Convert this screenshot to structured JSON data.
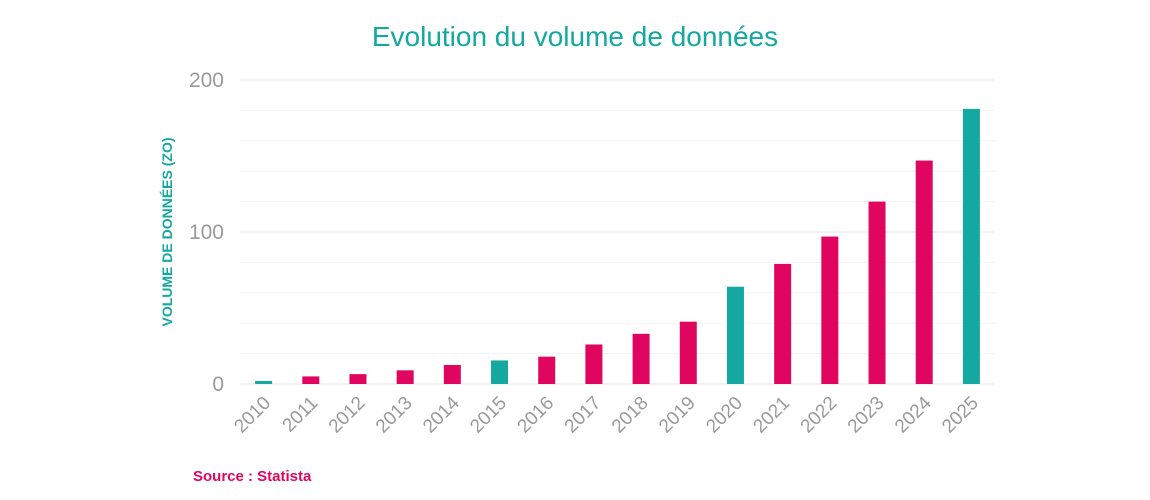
{
  "chart_data": {
    "type": "bar",
    "title": "Evolution du volume de données",
    "ylabel": "VOLUME DE DONNÉES (ZO)",
    "xlabel": "",
    "categories": [
      "2010",
      "2011",
      "2012",
      "2013",
      "2014",
      "2015",
      "2016",
      "2017",
      "2018",
      "2019",
      "2020",
      "2021",
      "2022",
      "2023",
      "2024",
      "2025"
    ],
    "values": [
      2,
      5,
      6.5,
      9,
      12.5,
      15.5,
      18,
      26,
      33,
      41,
      64,
      79,
      97,
      120,
      147,
      181
    ],
    "highlighted_categories": [
      "2010",
      "2015",
      "2020",
      "2025"
    ],
    "ylim": [
      0,
      200
    ],
    "yticks": [
      0,
      100,
      200
    ],
    "grid": true,
    "legend": "none",
    "colors": {
      "default_bar": "#e0065f",
      "highlight_bar": "#14a8a0",
      "title": "#14a8a0",
      "axis_text": "#9a9a9a"
    },
    "source": "Source : Statista"
  }
}
